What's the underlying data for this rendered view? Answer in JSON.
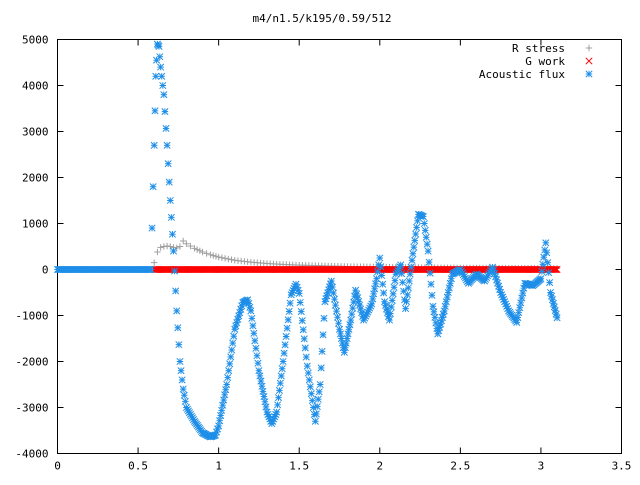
{
  "chart_data": {
    "type": "scatter",
    "title": "m4/n1.5/k195/0.59/512",
    "xlabel": "",
    "ylabel": "",
    "xlim": [
      0,
      3.5
    ],
    "ylim": [
      -4000,
      5000
    ],
    "xticks": [
      0,
      0.5,
      1,
      1.5,
      2,
      2.5,
      3,
      3.5
    ],
    "yticks": [
      -4000,
      -3000,
      -2000,
      -1000,
      0,
      1000,
      2000,
      3000,
      4000,
      5000
    ],
    "xtick_labels": [
      "0",
      "0.5",
      "1",
      "1.5",
      "2",
      "2.5",
      "3",
      "3.5"
    ],
    "ytick_labels": [
      "-4000",
      "-3000",
      "-2000",
      "-1000",
      "0",
      "1000",
      "2000",
      "3000",
      "4000",
      "5000"
    ],
    "grid": false,
    "legend_position": "top-right",
    "series": [
      {
        "name": "R stress",
        "marker": "plus",
        "color": "#a0a0a0",
        "x": [
          0.6,
          0.62,
          0.64,
          0.66,
          0.68,
          0.7,
          0.72,
          0.74,
          0.76,
          0.78,
          0.8,
          0.85,
          0.9,
          0.95,
          1.0,
          1.1,
          1.2,
          1.3,
          1.4,
          1.5,
          1.6,
          1.7,
          1.8,
          2.0,
          2.2,
          2.5,
          2.8,
          3.1
        ],
        "y": [
          150,
          380,
          480,
          500,
          510,
          500,
          480,
          470,
          500,
          620,
          560,
          460,
          380,
          320,
          270,
          200,
          160,
          130,
          110,
          95,
          85,
          75,
          65,
          55,
          45,
          35,
          30,
          25
        ]
      },
      {
        "name": "G work",
        "marker": "x",
        "color": "#ff0000",
        "x": [
          0.6,
          3.1
        ],
        "y": [
          0,
          0
        ]
      },
      {
        "name": "Acoustic flux",
        "marker": "asterisk",
        "color": "#1e8ee8",
        "x": [
          0.0,
          0.1,
          0.2,
          0.3,
          0.4,
          0.5,
          0.58,
          0.6,
          0.61,
          0.62,
          0.63,
          0.64,
          0.66,
          0.68,
          0.7,
          0.72,
          0.74,
          0.76,
          0.78,
          0.8,
          0.85,
          0.9,
          0.95,
          0.98,
          1.0,
          1.05,
          1.1,
          1.15,
          1.18,
          1.2,
          1.25,
          1.3,
          1.33,
          1.36,
          1.4,
          1.45,
          1.48,
          1.5,
          1.55,
          1.6,
          1.63,
          1.66,
          1.7,
          1.75,
          1.78,
          1.82,
          1.85,
          1.9,
          1.95,
          1.98,
          2.0,
          2.03,
          2.06,
          2.1,
          2.13,
          2.16,
          2.2,
          2.24,
          2.27,
          2.3,
          2.33,
          2.36,
          2.4,
          2.45,
          2.5,
          2.55,
          2.6,
          2.65,
          2.7,
          2.75,
          2.8,
          2.85,
          2.9,
          2.95,
          3.0,
          3.03,
          3.06,
          3.1
        ],
        "y": [
          0,
          0,
          0,
          0,
          0,
          0,
          0,
          2700,
          4200,
          4900,
          4850,
          4400,
          3800,
          2700,
          1500,
          400,
          -900,
          -2000,
          -2600,
          -3000,
          -3300,
          -3550,
          -3640,
          -3600,
          -3400,
          -2500,
          -1300,
          -720,
          -660,
          -900,
          -2200,
          -3100,
          -3350,
          -3100,
          -2000,
          -550,
          -320,
          -520,
          -2100,
          -3300,
          -2500,
          -700,
          -250,
          -1300,
          -1800,
          -1100,
          -450,
          -1100,
          -750,
          -200,
          250,
          -700,
          -1100,
          -100,
          100,
          -850,
          200,
          1200,
          1150,
          400,
          -800,
          -1400,
          -900,
          -100,
          0,
          -300,
          -100,
          -250,
          50,
          -500,
          -900,
          -1150,
          -300,
          -350,
          -200,
          580,
          -500,
          -1050
        ]
      }
    ]
  }
}
